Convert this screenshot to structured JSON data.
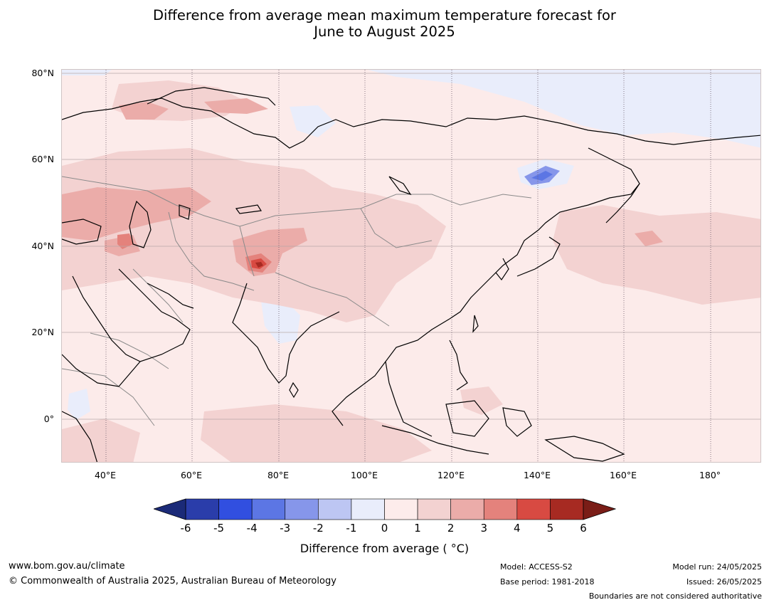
{
  "title_line1": "Difference from average mean maximum temperature forecast for",
  "title_line2": "June to August 2025",
  "lat_labels": [
    "80°N",
    "60°N",
    "40°N",
    "20°N",
    "0°"
  ],
  "lon_labels": [
    "40°E",
    "60°E",
    "80°E",
    "100°E",
    "120°E",
    "140°E",
    "160°E",
    "180°"
  ],
  "colorbar": {
    "labels": [
      "-6",
      "-5",
      "-4",
      "-3",
      "-2",
      "-1",
      "0",
      "1",
      "2",
      "3",
      "4",
      "5",
      "6"
    ],
    "colors": [
      "#2a3daa",
      "#314fe0",
      "#5c76e4",
      "#8696ea",
      "#bdc6f3",
      "#e9edfb",
      "#fdeceb",
      "#f3d2d1",
      "#ebaca9",
      "#e4827c",
      "#d84a42",
      "#a72a22"
    ],
    "under_color": "#1b2a78",
    "over_color": "#7a1d17",
    "title": "Difference from average ( °C)"
  },
  "footer": {
    "website": "www.bom.gov.au/climate",
    "copyright": "© Commonwealth of Australia 2025, Australian Bureau of Meteorology",
    "model": "Model: ACCESS-S2",
    "base_period": "Base period: 1981-2018",
    "model_run": "Model run: 24/05/2025",
    "issued": "Issued: 26/05/2025",
    "disclaimer": "Boundaries are not considered authoritative"
  }
}
